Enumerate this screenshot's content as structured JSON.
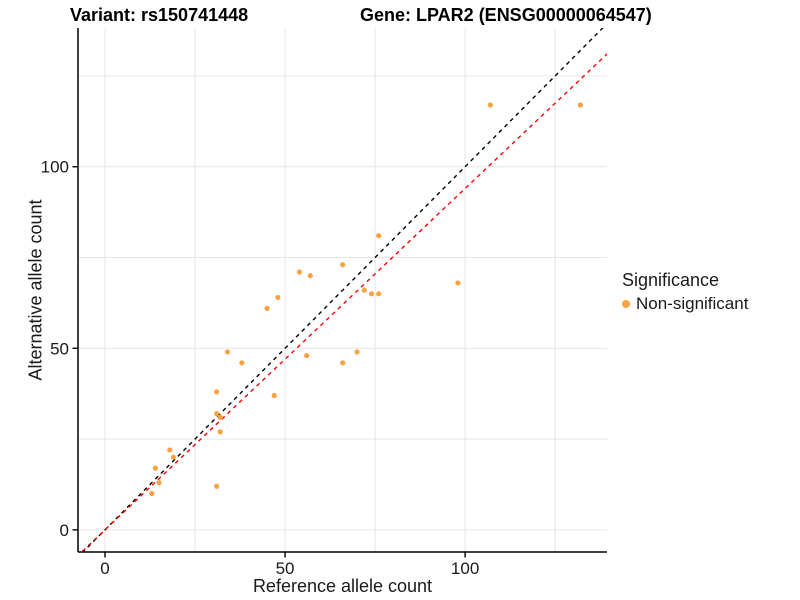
{
  "chart_data": {
    "type": "scatter",
    "titles": {
      "left": "Variant: rs150741448",
      "right": "Gene: LPAR2 (ENSG00000064547)"
    },
    "xlabel": "Reference allele count",
    "ylabel": "Alternative allele count",
    "xlim": [
      -7.5,
      139.4
    ],
    "ylim": [
      -6.1,
      138.2
    ],
    "x_ticks": [
      {
        "value": 0,
        "label": "0"
      },
      {
        "value": 50,
        "label": "50"
      },
      {
        "value": 100,
        "label": "100"
      }
    ],
    "y_ticks": [
      {
        "value": 0,
        "label": "0"
      },
      {
        "value": 50,
        "label": "50"
      },
      {
        "value": 100,
        "label": "100"
      }
    ],
    "minor_gridlines_x": [
      25,
      75,
      125
    ],
    "minor_gridlines_y": [
      25,
      75,
      125
    ],
    "grid": true,
    "series": [
      {
        "name": "Non-significant",
        "color": "#F9A242",
        "marker": "circle",
        "points": [
          [
            13,
            10
          ],
          [
            14,
            17
          ],
          [
            15,
            13
          ],
          [
            18,
            22
          ],
          [
            19,
            20
          ],
          [
            31,
            12
          ],
          [
            31,
            32
          ],
          [
            31,
            38
          ],
          [
            32,
            27
          ],
          [
            32,
            31
          ],
          [
            34,
            49
          ],
          [
            38,
            46
          ],
          [
            45,
            61
          ],
          [
            47,
            37
          ],
          [
            48,
            64
          ],
          [
            54,
            71
          ],
          [
            56,
            48
          ],
          [
            57,
            70
          ],
          [
            66,
            46
          ],
          [
            66,
            73
          ],
          [
            70,
            49
          ],
          [
            72,
            66
          ],
          [
            74,
            65
          ],
          [
            76,
            65
          ],
          [
            76,
            81
          ],
          [
            98,
            68
          ],
          [
            107,
            117
          ],
          [
            132,
            117
          ]
        ]
      }
    ],
    "reference_lines": [
      {
        "name": "identity-line",
        "slope": 1,
        "intercept": 0,
        "color": "#000000",
        "style": "dashed"
      },
      {
        "name": "regression-line",
        "slope": 0.94,
        "intercept": 0,
        "color": "#FF0000",
        "style": "dashed"
      }
    ],
    "legend": {
      "position": "right",
      "title": "Significance",
      "items": [
        {
          "label": "Non-significant",
          "color": "#F9A242"
        }
      ]
    }
  },
  "colors": {
    "background": "#FFFFFF",
    "gridline": "#E6E6E6",
    "axis": "#000000",
    "tick_label": "#1A1A1A"
  }
}
